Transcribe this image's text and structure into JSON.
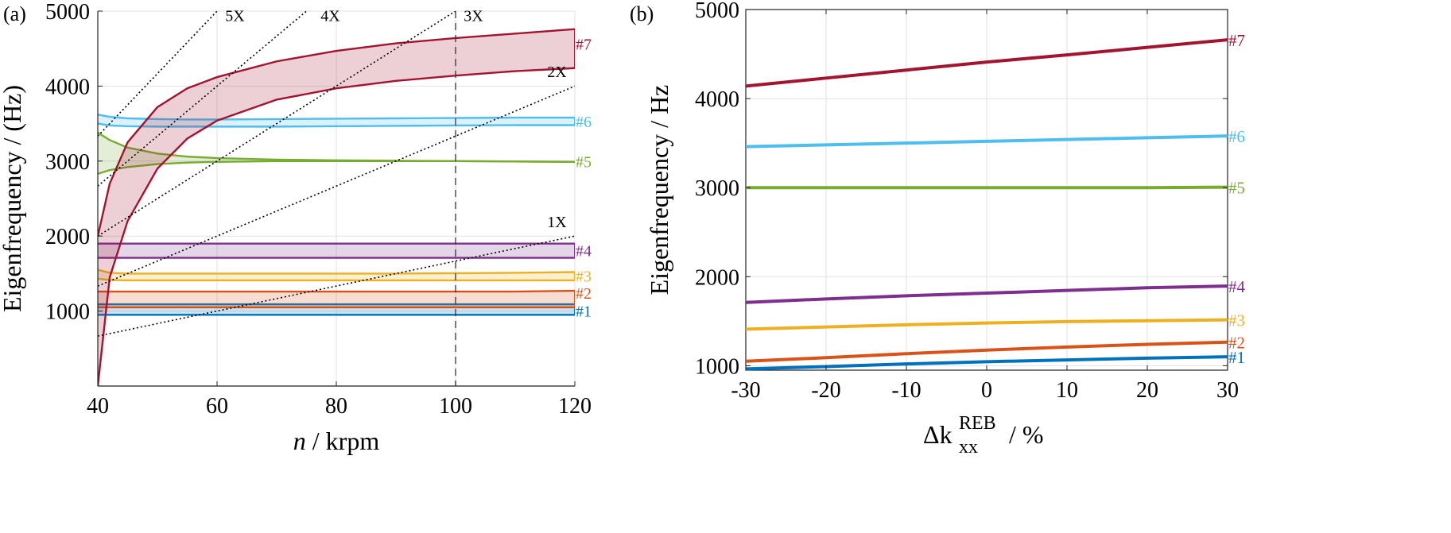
{
  "figure": {
    "panels": [
      "(a)",
      "(b)"
    ]
  },
  "chart_data": [
    {
      "panel_label": "(a)",
      "type": "line",
      "xlabel": "n / krpm",
      "xlabel_var": "n",
      "xlabel_unit": " / krpm",
      "ylabel": "Eigenfrequency / (Hz)",
      "xlim": [
        40,
        120
      ],
      "ylim": [
        0,
        5000
      ],
      "xticks": [
        40,
        60,
        80,
        100,
        120
      ],
      "yticks": [
        1000,
        2000,
        3000,
        4000,
        5000
      ],
      "grid": true,
      "x": [
        40,
        42,
        45,
        50,
        55,
        60,
        70,
        80,
        90,
        100,
        110,
        120
      ],
      "modes": [
        {
          "name": "#1",
          "color": "#0072BD",
          "lower": [
            950,
            950,
            950,
            950,
            950,
            950,
            950,
            950,
            950,
            950,
            950,
            950
          ],
          "upper": [
            1090,
            1090,
            1090,
            1090,
            1090,
            1090,
            1090,
            1090,
            1090,
            1090,
            1090,
            1090
          ]
        },
        {
          "name": "#2",
          "color": "#D95319",
          "lower": [
            1050,
            1050,
            1050,
            1050,
            1050,
            1050,
            1050,
            1050,
            1050,
            1050,
            1050,
            1050
          ],
          "upper": [
            1260,
            1260,
            1260,
            1260,
            1260,
            1260,
            1260,
            1260,
            1260,
            1260,
            1260,
            1270
          ]
        },
        {
          "name": "#3",
          "color": "#EDB120",
          "lower": [
            1430,
            1415,
            1410,
            1410,
            1410,
            1410,
            1410,
            1410,
            1410,
            1410,
            1410,
            1410
          ],
          "upper": [
            1550,
            1510,
            1500,
            1500,
            1500,
            1500,
            1500,
            1500,
            1500,
            1505,
            1510,
            1520
          ]
        },
        {
          "name": "#4",
          "color": "#7E2F8E",
          "lower": [
            1710,
            1710,
            1710,
            1710,
            1710,
            1710,
            1710,
            1710,
            1710,
            1710,
            1710,
            1710
          ],
          "upper": [
            1900,
            1900,
            1900,
            1900,
            1900,
            1900,
            1900,
            1900,
            1900,
            1900,
            1900,
            1900
          ]
        },
        {
          "name": "#5",
          "color": "#77AC30",
          "lower": [
            2830,
            2880,
            2920,
            2960,
            2980,
            2990,
            3000,
            3000,
            3000,
            3000,
            2995,
            2990
          ],
          "upper": [
            3380,
            3280,
            3180,
            3100,
            3060,
            3040,
            3020,
            3010,
            3005,
            3000,
            2995,
            2990
          ]
        },
        {
          "name": "#6",
          "color": "#4DBEEE",
          "lower": [
            3500,
            3475,
            3465,
            3460,
            3460,
            3460,
            3460,
            3465,
            3470,
            3475,
            3480,
            3480
          ],
          "upper": [
            3620,
            3590,
            3570,
            3560,
            3555,
            3555,
            3560,
            3565,
            3570,
            3575,
            3580,
            3580
          ]
        },
        {
          "name": "#7",
          "color": "#A2142F",
          "lower": [
            0,
            1450,
            2200,
            2900,
            3300,
            3540,
            3820,
            3970,
            4070,
            4140,
            4200,
            4240
          ],
          "upper": [
            2000,
            2700,
            3250,
            3720,
            3970,
            4120,
            4330,
            4470,
            4570,
            4640,
            4700,
            4760
          ]
        }
      ],
      "order_lines": [
        {
          "label": "1X",
          "multiple": 1,
          "label_at": [
            117,
            2120
          ]
        },
        {
          "label": "2X",
          "multiple": 2,
          "label_at": [
            117,
            4120
          ]
        },
        {
          "label": "3X",
          "multiple": 3,
          "label_at": [
            103,
            4870
          ]
        },
        {
          "label": "4X",
          "multiple": 4,
          "label_at": [
            79,
            4870
          ]
        },
        {
          "label": "5X",
          "multiple": 5,
          "label_at": [
            63,
            4870
          ]
        }
      ],
      "vertical_marker": {
        "x": 100,
        "style": "dashed"
      }
    },
    {
      "panel_label": "(b)",
      "type": "line",
      "xlabel": "Δk_xx^REB / %",
      "xlabel_main": "Δk",
      "xlabel_sub": "xx",
      "xlabel_sup": "REB",
      "xlabel_unit": " / %",
      "ylabel": "Eigenfrequency / Hz",
      "xlim": [
        -30,
        30
      ],
      "ylim": [
        950,
        5000
      ],
      "xticks": [
        -30,
        -20,
        -10,
        0,
        10,
        20,
        30
      ],
      "yticks": [
        1000,
        2000,
        3000,
        4000,
        5000
      ],
      "grid": true,
      "x": [
        -30,
        -20,
        -10,
        0,
        10,
        20,
        30
      ],
      "series": [
        {
          "name": "#1",
          "color": "#0072BD",
          "values": [
            965,
            990,
            1020,
            1045,
            1065,
            1085,
            1100
          ]
        },
        {
          "name": "#2",
          "color": "#D95319",
          "values": [
            1050,
            1090,
            1135,
            1175,
            1210,
            1240,
            1265
          ]
        },
        {
          "name": "#3",
          "color": "#EDB120",
          "values": [
            1410,
            1435,
            1460,
            1480,
            1495,
            1505,
            1515
          ]
        },
        {
          "name": "#4",
          "color": "#7E2F8E",
          "values": [
            1710,
            1750,
            1785,
            1815,
            1845,
            1875,
            1895
          ]
        },
        {
          "name": "#5",
          "color": "#77AC30",
          "values": [
            3000,
            3000,
            3000,
            3000,
            3000,
            3000,
            3005
          ]
        },
        {
          "name": "#6",
          "color": "#4DBEEE",
          "values": [
            3460,
            3480,
            3500,
            3520,
            3540,
            3560,
            3580
          ]
        },
        {
          "name": "#7",
          "color": "#A2142F",
          "values": [
            4140,
            4230,
            4320,
            4410,
            4490,
            4575,
            4660
          ]
        }
      ]
    }
  ]
}
